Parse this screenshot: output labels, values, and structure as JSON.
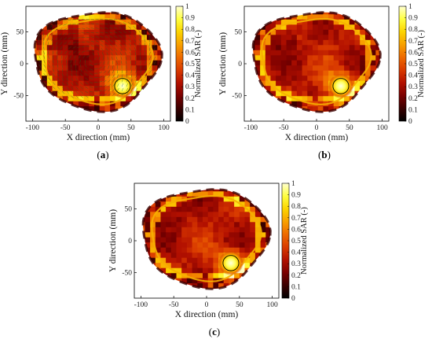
{
  "figure": {
    "colormap": [
      "#000000",
      "#3a0000",
      "#7a0000",
      "#b21000",
      "#d93a00",
      "#ee6a00",
      "#f8a000",
      "#fcd400",
      "#ffff40",
      "#ffffd0"
    ],
    "background_color": "#ffffff"
  },
  "chart_data": [
    {
      "type": "heatmap",
      "panel_label": "(a)",
      "label_letter": "a",
      "xlabel": "X direction (mm)",
      "ylabel": "Y direction (mm)",
      "colorbar_label": "Normalized SAR (-)",
      "xticks": [
        -100,
        -50,
        0,
        50,
        100
      ],
      "yticks": [
        50,
        0,
        -50
      ],
      "colorbar_ticks": [
        0,
        0.1,
        0.2,
        0.3,
        0.4,
        0.5,
        0.6,
        0.7,
        0.8,
        0.9,
        1
      ],
      "xlim": [
        -110,
        110
      ],
      "ylim": [
        -90,
        90
      ],
      "clim": [
        0,
        1
      ],
      "target_center": [
        37,
        -35
      ],
      "target_radius": 12,
      "field_pattern": "vector overlay; hotspot at target",
      "grid": false
    },
    {
      "type": "heatmap",
      "panel_label": "(b)",
      "label_letter": "b",
      "xlabel": "X direction (mm)",
      "ylabel": "Y direction (mm)",
      "colorbar_label": "Normalized SAR (-)",
      "xticks": [
        -100,
        -50,
        0,
        50,
        100
      ],
      "yticks": [
        50,
        0,
        -50
      ],
      "colorbar_ticks": [
        0,
        0.1,
        0.2,
        0.3,
        0.4,
        0.5,
        0.6,
        0.7,
        0.8,
        0.9,
        1
      ],
      "xlim": [
        -110,
        110
      ],
      "ylim": [
        -90,
        90
      ],
      "clim": [
        0,
        1
      ],
      "target_center": [
        37,
        -35
      ],
      "target_radius": 12,
      "field_pattern": "hotspot at target",
      "grid": false
    },
    {
      "type": "heatmap",
      "panel_label": "(c)",
      "label_letter": "c",
      "xlabel": "X direction (mm)",
      "ylabel": "Y direction (mm)",
      "colorbar_label": "Normalized SAR (-)",
      "xticks": [
        -100,
        -50,
        0,
        50,
        100
      ],
      "yticks": [
        50,
        0,
        -50
      ],
      "colorbar_ticks": [
        0,
        0.1,
        0.2,
        0.3,
        0.4,
        0.5,
        0.6,
        0.7,
        0.8,
        0.9,
        1
      ],
      "xlim": [
        -110,
        110
      ],
      "ylim": [
        -90,
        90
      ],
      "clim": [
        0,
        1
      ],
      "target_center": [
        37,
        -35
      ],
      "target_radius": 12,
      "field_pattern": "hotspot at target",
      "grid": false
    }
  ]
}
